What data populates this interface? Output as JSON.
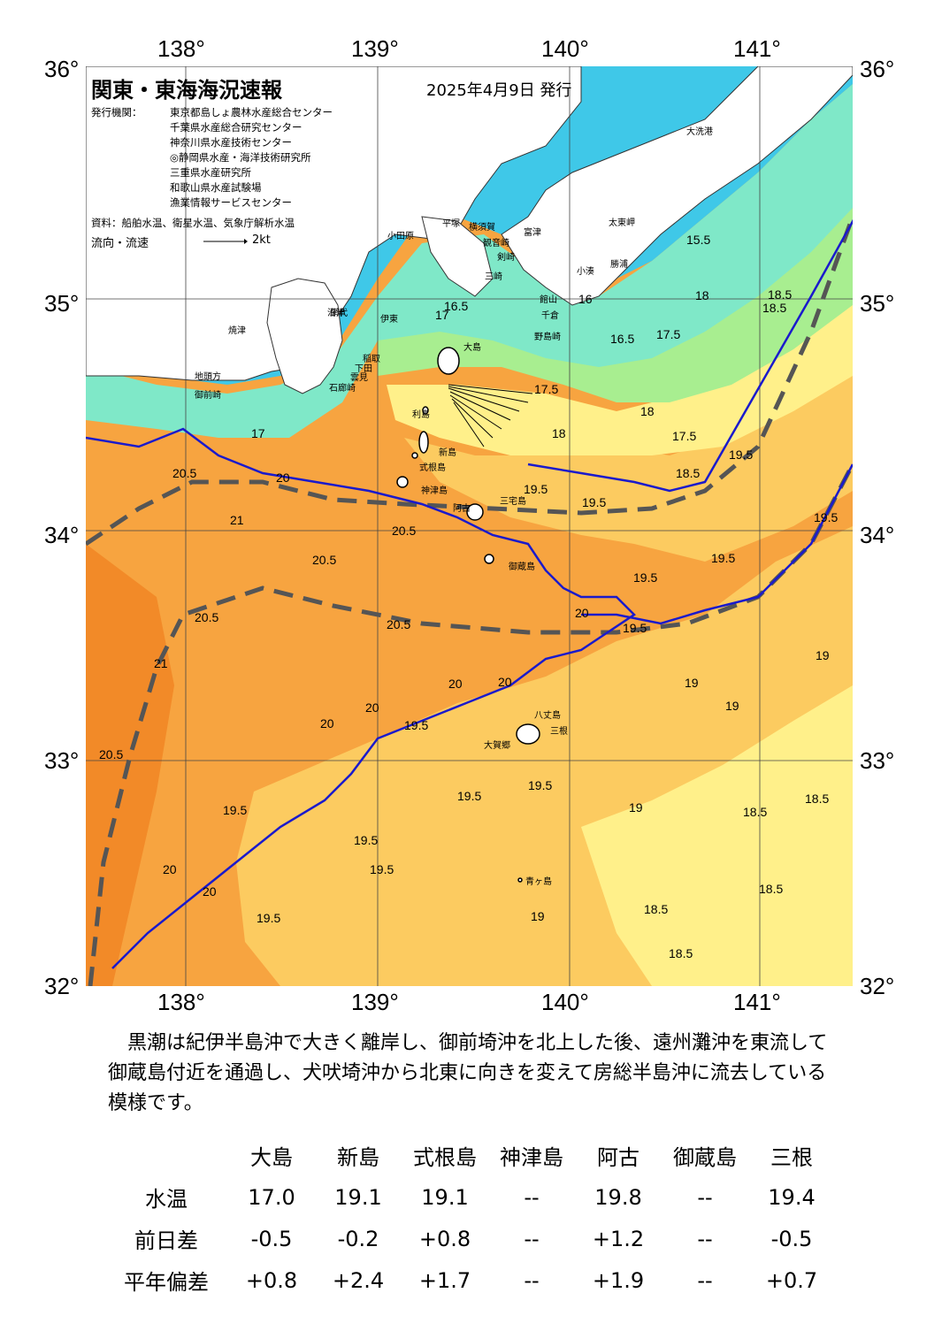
{
  "map": {
    "title": "関東・東海海況速報",
    "issued": "2025年4月9日 発行",
    "issuer_label": "発行機関：",
    "organizations": [
      "東京都島しょ農林水産総合センター",
      "千葉県水産総合研究センター",
      "神奈川県水産技術センター",
      "◎静岡県水産・海洋技術研究所",
      "三重県水産研究所",
      "和歌山県水産試験場",
      "漁業情報サービスセンター"
    ],
    "source_text": "資料：船舶水温、衛星水温、気象庁解析水温",
    "current_label": "流向・流速",
    "current_scale": "2kt",
    "lon_labels": [
      "138°",
      "139°",
      "140°",
      "141°"
    ],
    "lat_labels": [
      "36°",
      "35°",
      "34°",
      "33°",
      "32°"
    ],
    "place_names": [
      "大洗港",
      "太東岬",
      "富津",
      "勝浦",
      "小湊",
      "館山",
      "千倉",
      "野島崎",
      "平塚",
      "横須賀",
      "観音崎",
      "剣崎",
      "三崎",
      "小田原",
      "網代",
      "伊東",
      "稲取",
      "下田",
      "石廊崎",
      "焼津",
      "御前崎",
      "地頭方",
      "大島",
      "利島",
      "新島",
      "式根島",
      "神津島",
      "三宅島",
      "阿古",
      "御蔵島",
      "八丈島",
      "三根",
      "大賀郷",
      "青ヶ島",
      "沼津",
      "雲見"
    ],
    "isotherm_labels": [
      "15.5",
      "16",
      "16.5",
      "16.5",
      "17",
      "16.5",
      "17",
      "17.5",
      "18",
      "18.5",
      "18.5",
      "16",
      "16.5",
      "17",
      "17.5",
      "17.5",
      "18",
      "17.5",
      "18",
      "18.5",
      "17",
      "18.5",
      "18.5",
      "19",
      "19.5",
      "19",
      "19.5",
      "19.5",
      "19.5",
      "20",
      "20.5",
      "21",
      "20.5",
      "20.5",
      "20.5",
      "19.5",
      "19.5",
      "20",
      "19.5",
      "19.5",
      "19.5",
      "19.5",
      "20.5",
      "21",
      "20",
      "19.5",
      "20",
      "20",
      "19.5",
      "20",
      "19.5",
      "19",
      "19",
      "19.5",
      "19.5",
      "19",
      "18.5",
      "18.5",
      "18.5",
      "18.5",
      "18.5",
      "20.5",
      "19.5",
      "19.5",
      "19.5",
      "19.5",
      "20",
      "20",
      "19.5",
      "19",
      "19.5",
      "19",
      "18.5"
    ]
  },
  "summary": "黒潮は紀伊半島沖で大きく離岸し、御前埼沖を北上した後、遠州灘沖を東流して御蔵島付近を通過し、犬吠埼沖から北東に向きを変えて房総半島沖に流去している模様です。",
  "table": {
    "islands": [
      "大島",
      "新島",
      "式根島",
      "神津島",
      "阿古",
      "御蔵島",
      "三根"
    ],
    "rows": [
      {
        "label": "水温",
        "values": [
          "17.0",
          "19.1",
          "19.1",
          "--",
          "19.8",
          "--",
          "19.4"
        ]
      },
      {
        "label": "前日差",
        "values": [
          "-0.5",
          "-0.2",
          "+0.8",
          "--",
          "+1.2",
          "--",
          "-0.5"
        ]
      },
      {
        "label": "平年偏差",
        "values": [
          "+0.8",
          "+2.4",
          "+1.7",
          "--",
          "+1.9",
          "--",
          "+0.7"
        ]
      }
    ]
  },
  "colors": {
    "land": "#ffffff",
    "kuroshio_path": "#1a1acc",
    "kuroshio_axis_bounds": "#555555",
    "temp_cold": "#3fc8e8",
    "temp_cool": "#7fe8c8",
    "temp_green": "#a8ee90",
    "temp_yellow": "#fff08a",
    "temp_light_orange": "#fccb60",
    "temp_orange": "#f7a440",
    "temp_warm": "#f28a28"
  }
}
